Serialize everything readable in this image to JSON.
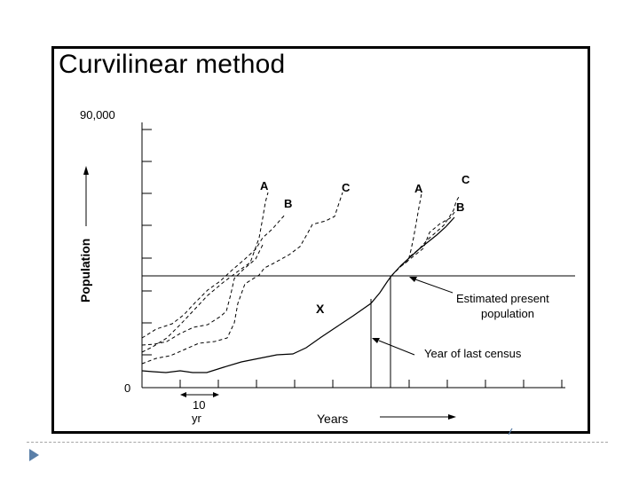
{
  "title": "Curvilinear method",
  "colors": {
    "line": "#000000",
    "frame": "#000000",
    "bullet": "#5a7fa8",
    "divider": "#a6a6a6"
  },
  "axis": {
    "y_max_label": "90,000",
    "origin_label": "0",
    "y_label": "Population",
    "x_label": "Years",
    "interval_value": "10",
    "interval_unit": "yr"
  },
  "curves": {
    "left_a": "A",
    "left_b": "B",
    "left_c": "C",
    "right_a": "A",
    "right_b": "B",
    "right_c": "C",
    "city_x": "X"
  },
  "annotations": {
    "estimate_line1": "Estimated present",
    "estimate_line2": "population",
    "census": "Year of last census"
  },
  "footer": {
    "bullet_icon": "triangle-bullet-icon"
  }
}
